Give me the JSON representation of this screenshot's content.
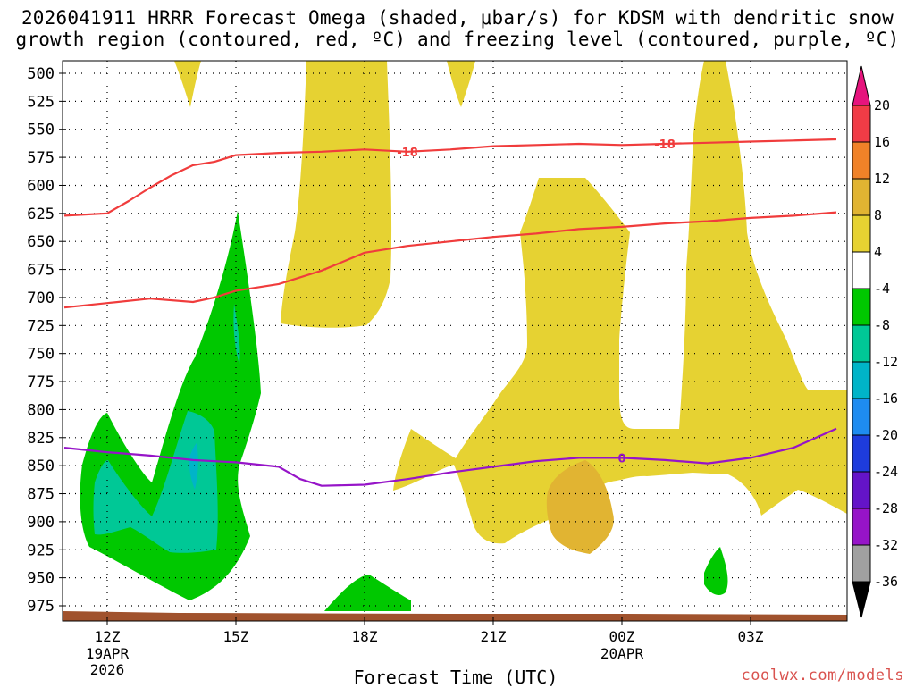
{
  "title_line1": "2026041911 HRRR Forecast Omega (shaded, μbar/s) for KDSM with dendritic snow",
  "title_line2": "growth region (contoured, red, ºC) and freezing level (contoured, purple, ºC)",
  "x_axis_title": "Forecast Time (UTC)",
  "credit": "coolwx.com/models",
  "chart_data": {
    "type": "time-height contour",
    "model": "HRRR",
    "init": "2026041911",
    "station": "KDSM",
    "shaded_field": "Omega (μbar/s)",
    "x_range_hours_utc": [
      11,
      29
    ],
    "y_range_hPa": [
      985,
      495
    ],
    "y_ticks": [
      500,
      525,
      550,
      575,
      600,
      625,
      650,
      675,
      700,
      725,
      750,
      775,
      800,
      825,
      850,
      875,
      900,
      925,
      950,
      975
    ],
    "x_ticks": [
      {
        "hour": 12,
        "label": "12Z",
        "sub1": "19APR",
        "sub2": "2026"
      },
      {
        "hour": 15,
        "label": "15Z",
        "sub1": "",
        "sub2": ""
      },
      {
        "hour": 18,
        "label": "18Z",
        "sub1": "",
        "sub2": ""
      },
      {
        "hour": 21,
        "label": "21Z",
        "sub1": "",
        "sub2": ""
      },
      {
        "hour": 24,
        "label": "00Z",
        "sub1": "20APR",
        "sub2": ""
      },
      {
        "hour": 27,
        "label": "03Z",
        "sub1": "",
        "sub2": ""
      }
    ],
    "colorbar": {
      "labels": [
        "20",
        "16",
        "12",
        "8",
        "4",
        "-4",
        "-8",
        "-12",
        "-16",
        "-20",
        "-24",
        "-28",
        "-32",
        "-36"
      ],
      "colors": [
        "#f03c46",
        "#f08228",
        "#e1b432",
        "#e6d232",
        "#ffffff",
        "#00c800",
        "#00c896",
        "#00b4c8",
        "#1e8cf0",
        "#1e3cdc",
        "#6414c8",
        "#9614c8",
        "#a0a0a0"
      ],
      "top_arrow_color": "#e6147d",
      "bottom_arrow_color": "#000000"
    },
    "shading_colors": {
      "weak_rise": "#00c800",
      "moderate_rise": "#00c896",
      "strong_rise": "#00b4c8",
      "weak_sink": "#e6d232",
      "moderate_sink": "#e1b432"
    },
    "dgz_color": "#f03c3c",
    "freezing_color": "#9614c8",
    "terrain_color": "#a0522d",
    "contours": [
      {
        "name": "-18C (top of DGZ)",
        "label": "-18",
        "label_hours": [
          19.0,
          25.0
        ],
        "points": [
          [
            11,
            627
          ],
          [
            12,
            625
          ],
          [
            12.5,
            614
          ],
          [
            13,
            602
          ],
          [
            13.5,
            591
          ],
          [
            14,
            582
          ],
          [
            14.5,
            579
          ],
          [
            15,
            573
          ],
          [
            16,
            571
          ],
          [
            17,
            570
          ],
          [
            18,
            568
          ],
          [
            19,
            570
          ],
          [
            20,
            568
          ],
          [
            21,
            565
          ],
          [
            22,
            564
          ],
          [
            23,
            563
          ],
          [
            24,
            564
          ],
          [
            25,
            563
          ],
          [
            26,
            562
          ],
          [
            27,
            561
          ],
          [
            28,
            560
          ],
          [
            29,
            559
          ]
        ]
      },
      {
        "name": "-12C (bottom of DGZ)",
        "label": "",
        "label_hours": [],
        "points": [
          [
            11,
            709
          ],
          [
            12,
            705
          ],
          [
            13,
            701
          ],
          [
            14,
            704
          ],
          [
            14.5,
            700
          ],
          [
            15,
            694
          ],
          [
            16,
            688
          ],
          [
            17,
            676
          ],
          [
            18,
            660
          ],
          [
            19,
            654
          ],
          [
            20,
            650
          ],
          [
            21,
            646
          ],
          [
            22,
            643
          ],
          [
            23,
            639
          ],
          [
            24,
            637
          ],
          [
            25,
            634
          ],
          [
            26,
            632
          ],
          [
            27,
            629
          ],
          [
            28,
            627
          ],
          [
            29,
            624
          ]
        ]
      },
      {
        "name": "0C freezing level",
        "label": "0",
        "label_hours": [
          24.0
        ],
        "points": [
          [
            11,
            834
          ],
          [
            12,
            838
          ],
          [
            13,
            841
          ],
          [
            14,
            845
          ],
          [
            15,
            847
          ],
          [
            16,
            851
          ],
          [
            16.5,
            862
          ],
          [
            17,
            868
          ],
          [
            18,
            867
          ],
          [
            19,
            862
          ],
          [
            20,
            856
          ],
          [
            21,
            851
          ],
          [
            22,
            846
          ],
          [
            23,
            843
          ],
          [
            24,
            843
          ],
          [
            25,
            845
          ],
          [
            26,
            848
          ],
          [
            27,
            843
          ],
          [
            28,
            834
          ],
          [
            29,
            817
          ]
        ]
      }
    ]
  }
}
